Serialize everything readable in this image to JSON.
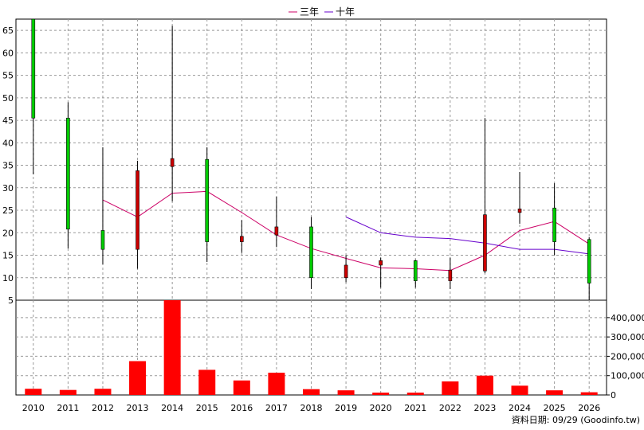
{
  "legend": [
    {
      "label": "三年",
      "color": "#cc0066"
    },
    {
      "label": "十年",
      "color": "#6600cc"
    }
  ],
  "source_note": "資料日期: 09/29 (Goodinfo.tw)",
  "colors": {
    "up_candle": "#cc0000",
    "down_candle": "#00cc00",
    "volume_bar": "#ff0000",
    "grid": "#999999"
  },
  "chart_data": [
    {
      "type": "candlestick",
      "title": "",
      "categories": [
        "2010",
        "2011",
        "2012",
        "2013",
        "2014",
        "2015",
        "2016",
        "2017",
        "2018",
        "2019",
        "2020",
        "2021",
        "2022",
        "2023",
        "2024",
        "2025",
        "2026"
      ],
      "ohlc": [
        {
          "open": 67.5,
          "high": 67.5,
          "low": 33.0,
          "close": 45.5
        },
        {
          "open": 45.5,
          "high": 49.0,
          "low": 16.5,
          "close": 20.8
        },
        {
          "open": 20.5,
          "high": 39.0,
          "low": 13.0,
          "close": 16.3
        },
        {
          "open": 16.3,
          "high": 36.0,
          "low": 12.0,
          "close": 33.8
        },
        {
          "open": 34.7,
          "high": 66.0,
          "low": 27.0,
          "close": 36.5
        },
        {
          "open": 36.3,
          "high": 39.0,
          "low": 13.5,
          "close": 18.0
        },
        {
          "open": 18.0,
          "high": 22.8,
          "low": 15.5,
          "close": 19.2
        },
        {
          "open": 19.5,
          "high": 28.0,
          "low": 16.8,
          "close": 21.3
        },
        {
          "open": 21.3,
          "high": 23.5,
          "low": 7.5,
          "close": 10.0
        },
        {
          "open": 10.0,
          "high": 15.0,
          "low": 9.0,
          "close": 12.8
        },
        {
          "open": 12.8,
          "high": 14.5,
          "low": 7.8,
          "close": 13.8
        },
        {
          "open": 13.8,
          "high": 14.0,
          "low": 7.8,
          "close": 9.3
        },
        {
          "open": 9.3,
          "high": 14.5,
          "low": 7.5,
          "close": 11.7
        },
        {
          "open": 11.5,
          "high": 45.5,
          "low": 11.0,
          "close": 24.0
        },
        {
          "open": 24.5,
          "high": 33.5,
          "low": 22.0,
          "close": 25.3
        },
        {
          "open": 25.5,
          "high": 31.0,
          "low": 15.0,
          "close": 18.0
        },
        {
          "open": 18.5,
          "high": 19.0,
          "low": 5.0,
          "close": 8.8
        }
      ],
      "series": [
        {
          "name": "三年",
          "values": [
            null,
            null,
            27.3,
            23.5,
            28.8,
            29.2,
            24.5,
            19.5,
            16.5,
            14.3,
            12.2,
            12.0,
            11.6,
            15.0,
            20.5,
            22.5,
            17.5
          ]
        },
        {
          "name": "十年",
          "values": [
            null,
            null,
            null,
            null,
            null,
            null,
            null,
            null,
            null,
            23.5,
            20.0,
            19.0,
            18.7,
            17.7,
            16.3,
            16.3,
            15.3
          ]
        }
      ],
      "ylim": [
        5,
        67.5
      ],
      "yticks": [
        5,
        10,
        15,
        20,
        25,
        30,
        35,
        40,
        45,
        50,
        55,
        60,
        65
      ],
      "grid": true,
      "legend_position": "top-center"
    },
    {
      "type": "bar",
      "title": "",
      "categories": [
        "2010",
        "2011",
        "2012",
        "2013",
        "2014",
        "2015",
        "2016",
        "2017",
        "2018",
        "2019",
        "2020",
        "2021",
        "2022",
        "2023",
        "2024",
        "2025",
        "2026"
      ],
      "values": [
        32000,
        26000,
        32000,
        175000,
        490000,
        130000,
        75000,
        115000,
        30000,
        24000,
        12000,
        12000,
        70000,
        100000,
        48000,
        24000,
        14000
      ],
      "ylim": [
        0,
        490000
      ],
      "yticks": [
        0,
        100000,
        200000,
        300000,
        400000
      ],
      "ytick_labels": [
        "0",
        "100,000",
        "200,000",
        "300,000",
        "400,000"
      ],
      "grid": true
    }
  ]
}
